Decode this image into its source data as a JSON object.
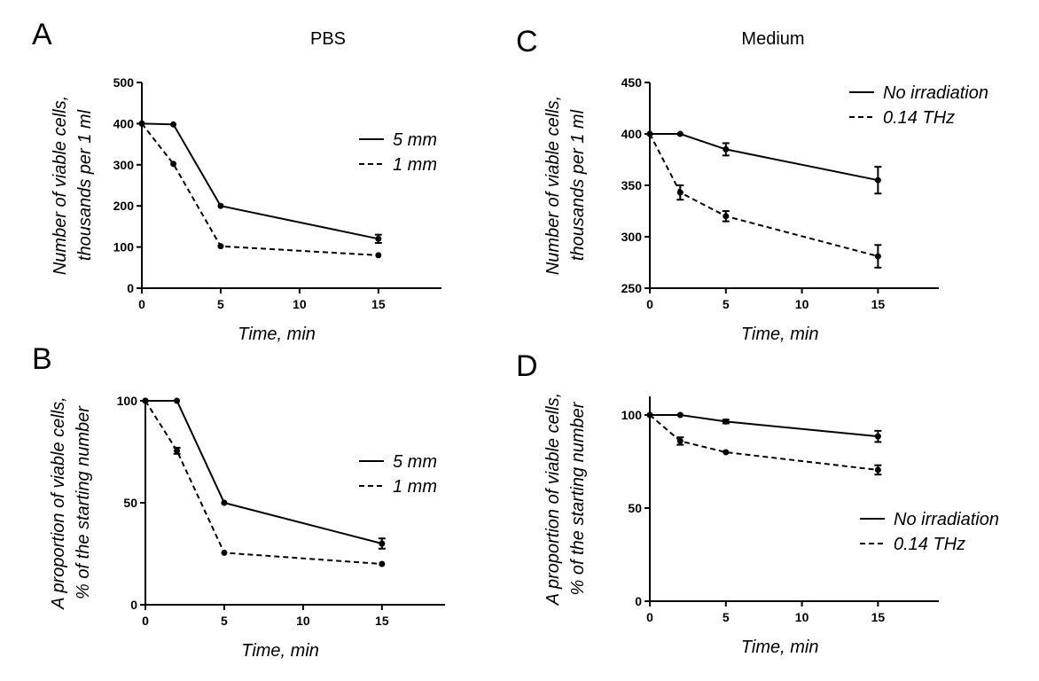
{
  "figure_titles": {
    "left": "PBS",
    "right": "Medium"
  },
  "chart_data": [
    {
      "panel": "A",
      "type": "line",
      "title": "PBS",
      "xlabel": "Time, min",
      "ylabel_lines": [
        "Number of viable cells,",
        "thousands per 1 ml"
      ],
      "xlim": [
        0,
        19
      ],
      "ylim": [
        0,
        500
      ],
      "xticks": [
        0,
        5,
        10,
        15
      ],
      "yticks": [
        0,
        100,
        200,
        300,
        400,
        500
      ],
      "legend_position": "top-right",
      "series": [
        {
          "name": "5 mm",
          "style": "solid",
          "x": [
            0,
            2,
            5,
            15
          ],
          "y": [
            400,
            398,
            200,
            120
          ],
          "err": [
            0,
            0,
            0,
            10
          ]
        },
        {
          "name": "1 mm",
          "style": "dashed",
          "x": [
            0,
            2,
            5,
            15
          ],
          "y": [
            400,
            302,
            102,
            80
          ],
          "err": [
            0,
            0,
            0,
            0
          ]
        }
      ]
    },
    {
      "panel": "B",
      "type": "line",
      "title": "",
      "xlabel": "Time, min",
      "ylabel_lines": [
        "A proportion of viable cells,",
        "% of the starting number"
      ],
      "xlim": [
        0,
        19
      ],
      "ylim": [
        0,
        100
      ],
      "xticks": [
        0,
        5,
        10,
        15
      ],
      "yticks": [
        0,
        50,
        100
      ],
      "legend_position": "right",
      "series": [
        {
          "name": "5 mm",
          "style": "solid",
          "x": [
            0,
            2,
            5,
            15
          ],
          "y": [
            100,
            100,
            50,
            30
          ],
          "err": [
            0,
            0,
            0,
            2.5
          ]
        },
        {
          "name": "1 mm",
          "style": "dashed",
          "x": [
            0,
            2,
            5,
            15
          ],
          "y": [
            100,
            75.5,
            25.5,
            20
          ],
          "err": [
            0,
            1.5,
            0,
            0
          ]
        }
      ]
    },
    {
      "panel": "C",
      "type": "line",
      "title": "Medium",
      "xlabel": "Time, min",
      "ylabel_lines": [
        "Number of viable cells,",
        "thousands per 1 ml"
      ],
      "xlim": [
        0,
        19
      ],
      "ylim": [
        250,
        450
      ],
      "xticks": [
        0,
        5,
        10,
        15
      ],
      "yticks": [
        250,
        300,
        350,
        400,
        450
      ],
      "legend_position": "top-right",
      "series": [
        {
          "name": "No irradiation",
          "style": "solid",
          "x": [
            0,
            2,
            5,
            15
          ],
          "y": [
            400,
            400,
            385,
            355
          ],
          "err": [
            0,
            0,
            6,
            13
          ]
        },
        {
          "name": "0.14 THz",
          "style": "dashed",
          "x": [
            0,
            2,
            5,
            15
          ],
          "y": [
            400,
            343,
            320,
            281
          ],
          "err": [
            0,
            7,
            5,
            11
          ]
        }
      ]
    },
    {
      "panel": "D",
      "type": "line",
      "title": "",
      "xlabel": "Time, min",
      "ylabel_lines": [
        "A proportion of viable cells,",
        "% of the starting number"
      ],
      "xlim": [
        0,
        19
      ],
      "ylim": [
        0,
        110
      ],
      "xticks": [
        0,
        5,
        10,
        15
      ],
      "yticks": [
        0,
        50,
        100
      ],
      "legend_position": "right",
      "series": [
        {
          "name": "No irradiation",
          "style": "solid",
          "x": [
            0,
            2,
            5,
            15
          ],
          "y": [
            100,
            100,
            96.5,
            88.5
          ],
          "err": [
            0,
            0,
            1,
            3
          ]
        },
        {
          "name": "0.14 THz",
          "style": "dashed",
          "x": [
            0,
            2,
            5,
            15
          ],
          "y": [
            100,
            86,
            80,
            70.5
          ],
          "err": [
            0,
            2,
            0,
            2.5
          ]
        }
      ]
    }
  ]
}
